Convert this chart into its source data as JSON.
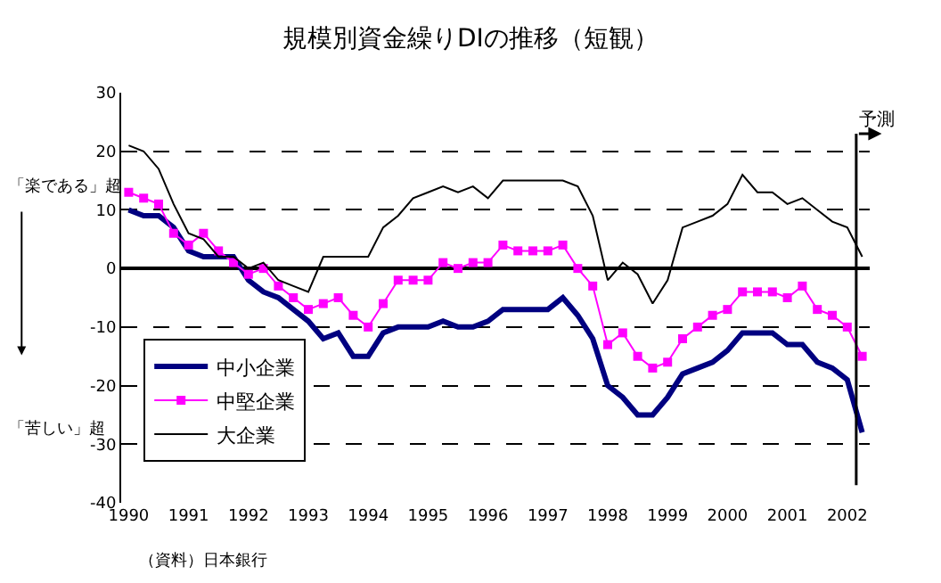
{
  "chart_data": {
    "type": "line",
    "title": "規模別資金繰りDIの推移（短観）",
    "x": [
      1990,
      1990.25,
      1990.5,
      1990.75,
      1991,
      1991.25,
      1991.5,
      1991.75,
      1992,
      1992.25,
      1992.5,
      1992.75,
      1993,
      1993.25,
      1993.5,
      1993.75,
      1994,
      1994.25,
      1994.5,
      1994.75,
      1995,
      1995.25,
      1995.5,
      1995.75,
      1996,
      1996.25,
      1996.5,
      1996.75,
      1997,
      1997.25,
      1997.5,
      1997.75,
      1998,
      1998.25,
      1998.5,
      1998.75,
      1999,
      1999.25,
      1999.5,
      1999.75,
      2000,
      2000.25,
      2000.5,
      2000.75,
      2001,
      2001.25,
      2001.5,
      2001.75,
      2002,
      2002.25
    ],
    "series": [
      {
        "name": "中小企業",
        "color": "#000080",
        "marker": "none",
        "values": [
          10,
          9,
          9,
          7,
          3,
          2,
          2,
          2,
          -2,
          -4,
          -5,
          -7,
          -9,
          -12,
          -11,
          -15,
          -15,
          -11,
          -10,
          -10,
          -10,
          -9,
          -10,
          -10,
          -9,
          -7,
          -7,
          -7,
          -7,
          -5,
          -8,
          -12,
          -20,
          -22,
          -25,
          -25,
          -22,
          -18,
          -17,
          -16,
          -14,
          -11,
          -11,
          -11,
          -13,
          -13,
          -16,
          -17,
          -19,
          -28
        ]
      },
      {
        "name": "中堅企業",
        "color": "#ff00ff",
        "marker": "square",
        "values": [
          13,
          12,
          11,
          6,
          4,
          6,
          3,
          1,
          -1,
          0,
          -3,
          -5,
          -7,
          -6,
          -5,
          -8,
          -10,
          -6,
          -2,
          -2,
          -2,
          1,
          0,
          1,
          1,
          4,
          3,
          3,
          3,
          4,
          0,
          -3,
          -13,
          -11,
          -15,
          -17,
          -16,
          -12,
          -10,
          -8,
          -7,
          -4,
          -4,
          -4,
          -5,
          -3,
          -7,
          -8,
          -10,
          -15
        ]
      },
      {
        "name": "大企業",
        "color": "#000000",
        "marker": "none",
        "values": [
          21,
          20,
          17,
          11,
          6,
          5,
          2,
          2,
          0,
          1,
          -2,
          -3,
          -4,
          2,
          2,
          2,
          2,
          7,
          9,
          12,
          13,
          14,
          13,
          14,
          12,
          15,
          15,
          15,
          15,
          15,
          14,
          9,
          -2,
          1,
          -1,
          -6,
          -2,
          7,
          8,
          9,
          11,
          16,
          13,
          13,
          11,
          12,
          10,
          8,
          7,
          2
        ]
      }
    ],
    "xlim": [
      1989.875,
      2002.375
    ],
    "xticks": [
      1990,
      1991,
      1992,
      1993,
      1994,
      1995,
      1996,
      1997,
      1998,
      1999,
      2000,
      2001,
      2002
    ],
    "ylim": [
      -40,
      30
    ],
    "yticks": [
      -40,
      -30,
      -20,
      -10,
      0,
      10,
      20,
      30
    ],
    "grid": "y",
    "legend": "bottom left",
    "ref_lines": [
      {
        "axis": "x",
        "value": 2002.15,
        "label": "予測",
        "color": "#000000"
      }
    ],
    "annotations": [
      "「楽である」超",
      "「苦しい」超",
      "（資料）日本銀行"
    ]
  }
}
